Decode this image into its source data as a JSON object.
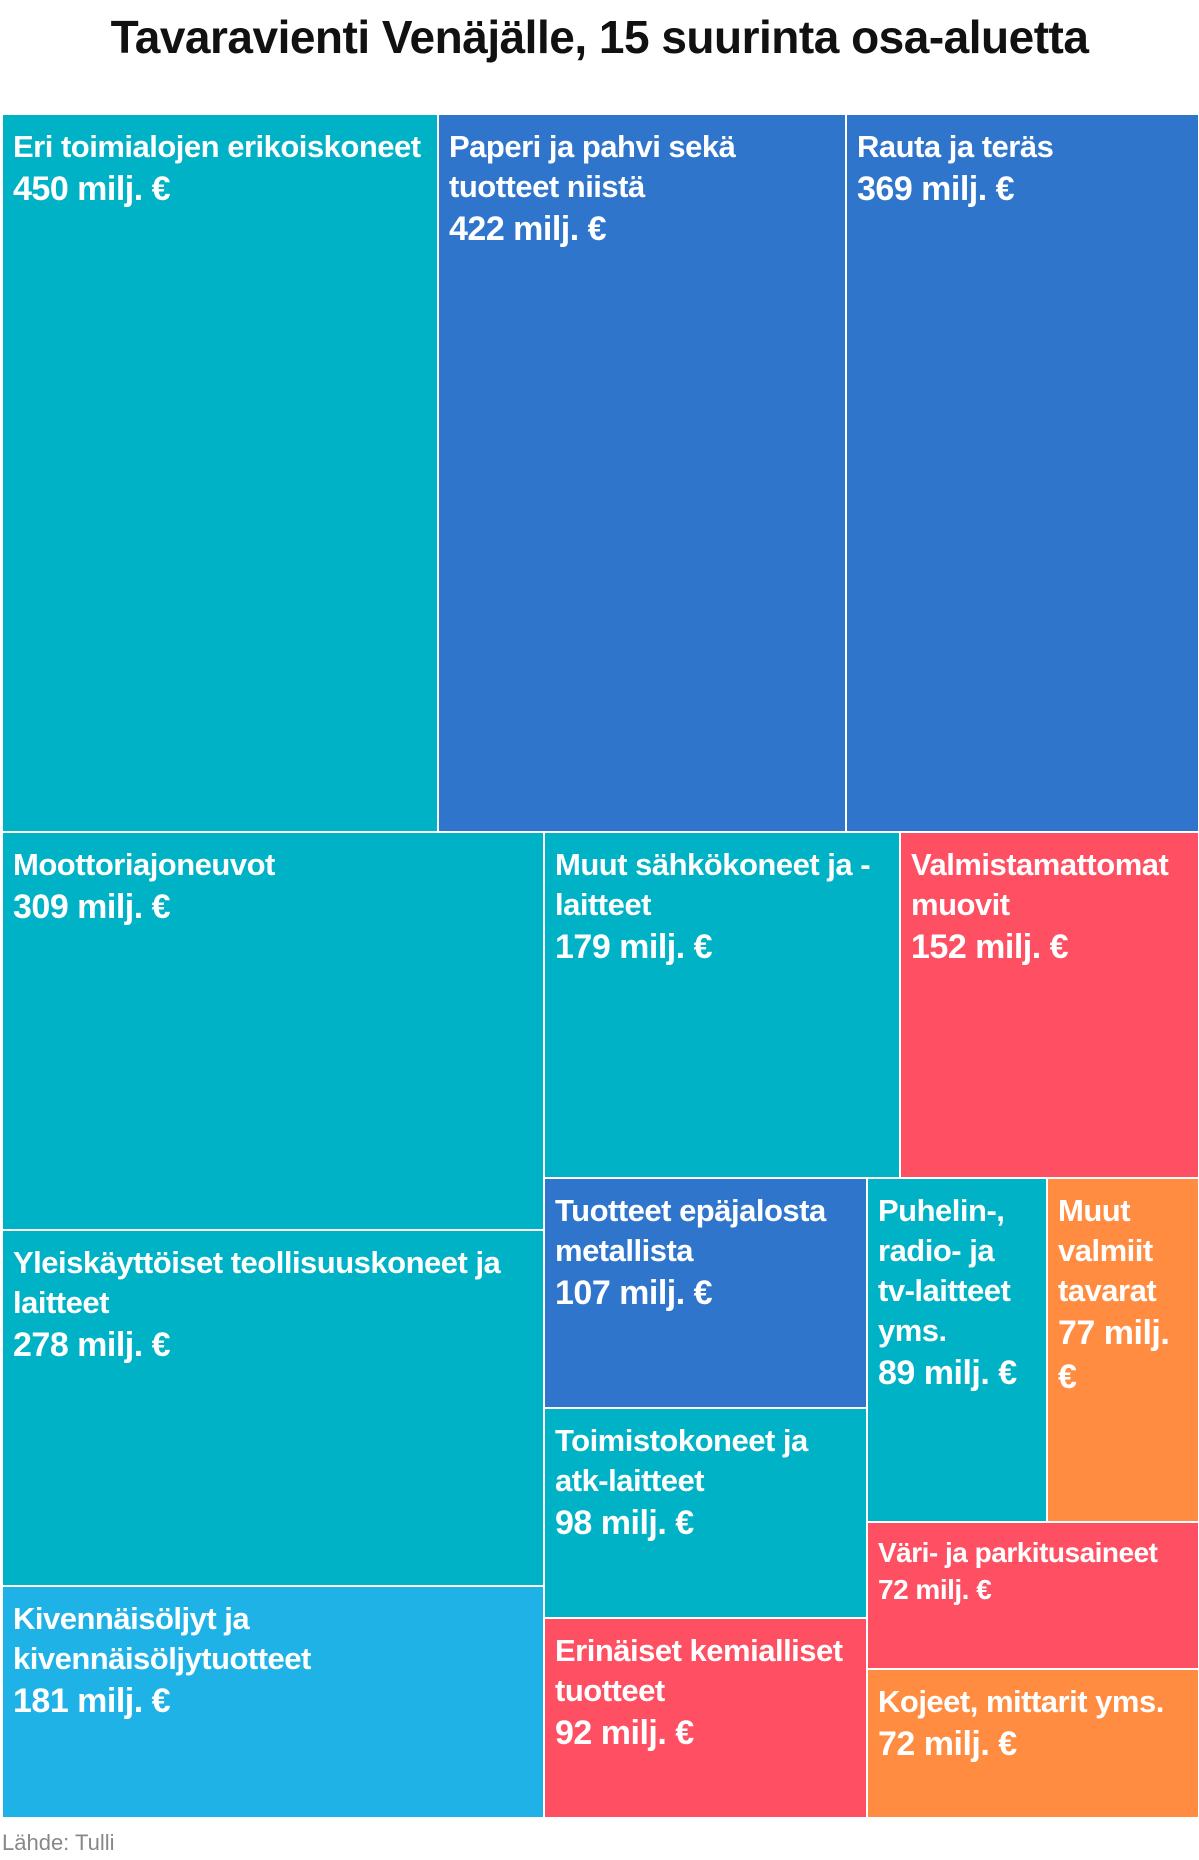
{
  "header": {
    "title": "Tavaravienti Venäjälle, 15 suurinta osa-aluetta"
  },
  "footer": {
    "source": "Lähde: Tulli"
  },
  "colors": {
    "teal": "#00B2C6",
    "blue": "#2F75CC",
    "light_blue": "#1FB2E6",
    "red": "#FF4F62",
    "orange": "#FF8C40"
  },
  "chart_data": {
    "type": "treemap",
    "title": "Tavaravienti Venäjälle, 15 suurinta osa-aluetta",
    "unit": "milj. €",
    "items": [
      {
        "label": "Eri toimialojen erikoiskoneet",
        "value": 450,
        "value_text": "450 milj. €",
        "color": "#00B2C6"
      },
      {
        "label": "Paperi ja pahvi sekä tuotteet niistä",
        "value": 422,
        "value_text": "422 milj. €",
        "color": "#2F75CC"
      },
      {
        "label": "Rauta ja teräs",
        "value": 369,
        "value_text": "369 milj. €",
        "color": "#2F75CC"
      },
      {
        "label": "Moottoriajoneuvot",
        "value": 309,
        "value_text": "309 milj. €",
        "color": "#00B2C6"
      },
      {
        "label": "Muut sähkökoneet ja -laitteet",
        "value": 179,
        "value_text": "179 milj. €",
        "color": "#00B2C6"
      },
      {
        "label": "Valmistamattomat muovit",
        "value": 152,
        "value_text": "152 milj. €",
        "color": "#FF4F62"
      },
      {
        "label": "Yleiskäyttöiset teollisuuskoneet ja laitteet",
        "value": 278,
        "value_text": "278 milj. €",
        "color": "#00B2C6"
      },
      {
        "label": "Tuotteet epäjalosta metallista",
        "value": 107,
        "value_text": "107 milj. €",
        "color": "#2F75CC"
      },
      {
        "label": "Puhelin-, radio- ja tv-laitteet yms.",
        "value": 89,
        "value_text": "89 milj. €",
        "color": "#00B2C6"
      },
      {
        "label": "Muut valmiit tavarat",
        "value": 77,
        "value_text": "77 milj. €",
        "color": "#FF8C40"
      },
      {
        "label": "Toimistokoneet ja atk-laitteet",
        "value": 98,
        "value_text": "98 milj. €",
        "color": "#00B2C6"
      },
      {
        "label": "Väri- ja parkitusaineet",
        "value": 72,
        "value_text": "72 milj. €",
        "color": "#FF4F62"
      },
      {
        "label": "Kivennäisöljyt ja kivennäisöljytuotteet",
        "value": 181,
        "value_text": "181 milj. €",
        "color": "#1FB2E6"
      },
      {
        "label": "Erinäiset kemialliset tuotteet",
        "value": 92,
        "value_text": "92 milj. €",
        "color": "#FF4F62"
      },
      {
        "label": "Kojeet, mittarit yms.",
        "value": 72,
        "value_text": "72 milj. €",
        "color": "#FF8C40"
      }
    ]
  }
}
